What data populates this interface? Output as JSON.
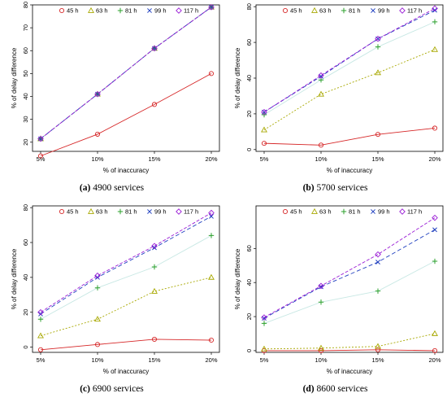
{
  "chart_data": [
    {
      "type": "line",
      "panel_letter": "(a)",
      "caption": "4900 services",
      "xlabel": "% of inaccuracy",
      "ylabel": "% of delay difference",
      "categories": [
        "5%",
        "10%",
        "15%",
        "20%"
      ],
      "yticks": [
        20,
        30,
        40,
        50,
        60,
        70,
        80
      ],
      "ylim": [
        16,
        80
      ],
      "legend_position": "top",
      "series": [
        {
          "name": "45 h",
          "values": [
            14,
            23.5,
            36.5,
            50
          ]
        },
        {
          "name": "63 h",
          "values": [
            21.5,
            41,
            61,
            79
          ]
        },
        {
          "name": "81 h",
          "values": [
            21.5,
            41,
            61,
            79
          ]
        },
        {
          "name": "99 h",
          "values": [
            21.5,
            41,
            61,
            79
          ]
        },
        {
          "name": "117 h",
          "values": [
            21.5,
            41,
            61,
            79
          ]
        }
      ]
    },
    {
      "type": "line",
      "panel_letter": "(b)",
      "caption": "5700 services",
      "xlabel": "% of inaccuracy",
      "ylabel": "% of delay difference",
      "categories": [
        "5%",
        "10%",
        "15%",
        "20%"
      ],
      "yticks": [
        0,
        20,
        40,
        60,
        80
      ],
      "ylim": [
        -1,
        81
      ],
      "legend_position": "top",
      "series": [
        {
          "name": "45 h",
          "values": [
            3.5,
            2.5,
            8.5,
            12
          ]
        },
        {
          "name": "63 h",
          "values": [
            11,
            31,
            43,
            56
          ]
        },
        {
          "name": "81 h",
          "values": [
            19.5,
            39,
            57.5,
            71.5
          ]
        },
        {
          "name": "99 h",
          "values": [
            21,
            41,
            62,
            78
          ]
        },
        {
          "name": "117 h",
          "values": [
            21,
            41.5,
            62,
            79
          ]
        }
      ]
    },
    {
      "type": "line",
      "panel_letter": "(c)",
      "caption": "6900 services",
      "xlabel": "% of inaccuracy",
      "ylabel": "% of delay difference",
      "categories": [
        "5%",
        "10%",
        "15%",
        "20%"
      ],
      "yticks": [
        0,
        20,
        40,
        60,
        80
      ],
      "ylim": [
        -3,
        81
      ],
      "legend_position": "top",
      "series": [
        {
          "name": "45 h",
          "values": [
            -1.5,
            1.5,
            4.5,
            4
          ]
        },
        {
          "name": "63 h",
          "values": [
            6.5,
            16,
            32,
            40
          ]
        },
        {
          "name": "81 h",
          "values": [
            16,
            34,
            46,
            64
          ]
        },
        {
          "name": "99 h",
          "values": [
            19,
            40,
            57,
            75
          ]
        },
        {
          "name": "117 h",
          "values": [
            20,
            41,
            58,
            77
          ]
        }
      ]
    },
    {
      "type": "line",
      "panel_letter": "(d)",
      "caption": "8600 services",
      "xlabel": "% of inaccuracy",
      "ylabel": "% of delay difference",
      "categories": [
        "5%",
        "10%",
        "15%",
        "20%"
      ],
      "yticks": [
        0,
        20,
        40,
        60
      ],
      "ylim": [
        -1,
        85
      ],
      "legend_position": "top",
      "series": [
        {
          "name": "45 h",
          "values": [
            0,
            0,
            0.5,
            0
          ]
        },
        {
          "name": "63 h",
          "values": [
            1,
            1.5,
            2.5,
            10
          ]
        },
        {
          "name": "81 h",
          "values": [
            16,
            28.5,
            35,
            52.5
          ]
        },
        {
          "name": "99 h",
          "values": [
            19,
            37.5,
            52,
            71
          ]
        },
        {
          "name": "117 h",
          "values": [
            19.5,
            38,
            56.5,
            78
          ]
        }
      ]
    }
  ],
  "series_styles": [
    {
      "name": "45 h",
      "color": "#d62728",
      "dash": "",
      "marker": "circle"
    },
    {
      "name": "63 h",
      "color": "#a8a800",
      "dash": "2,2",
      "marker": "triangle"
    },
    {
      "name": "81 h",
      "color": "#2ca02c",
      "dash": "",
      "marker": "plus",
      "line_color": "#c8e8e4"
    },
    {
      "name": "99 h",
      "color": "#1f3fbf",
      "dash": "5,3",
      "marker": "cross"
    },
    {
      "name": "117 h",
      "color": "#9b1fd6",
      "dash": "4,2",
      "marker": "diamond"
    }
  ]
}
